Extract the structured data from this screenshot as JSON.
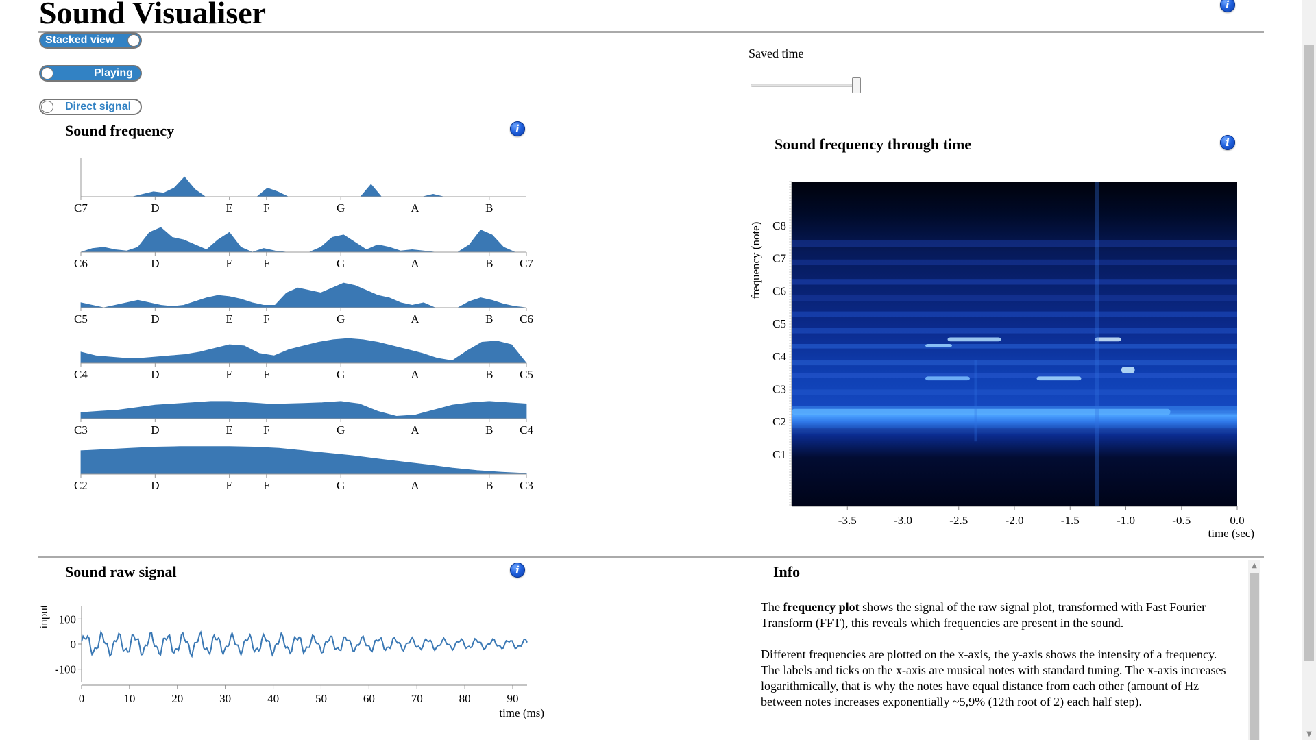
{
  "app": {
    "title": "Sound Visualiser"
  },
  "toggles": {
    "stacked": {
      "label": "Stacked view",
      "state": "on"
    },
    "playing": {
      "label": "Playing",
      "state": "on"
    },
    "direct": {
      "label": "Direct signal",
      "state": "off"
    }
  },
  "saved_time": {
    "label": "Saved time",
    "value": 1.0
  },
  "sections": {
    "frequency": "Sound frequency",
    "spectrogram": "Sound frequency through time",
    "raw": "Sound raw signal",
    "info": "Info"
  },
  "info_text": {
    "p1_a": "The ",
    "p1_b": "frequency plot",
    "p1_c": " shows the signal of the raw signal plot, transformed with Fast Fourier Transform (FFT), this reveals which frequencies are present in the sound.",
    "p2": "Different frequencies are plotted on the x-axis, the y-axis shows the intensity of a frequency.",
    "p3": "The labels and ticks on the x-axis are musical notes with standard tuning. The x-axis increases logarithmically, that is why the notes have equal distance from each other (amount of Hz between notes increases exponentially ~5,9% (12th root of 2) each half step)."
  },
  "chart_data": [
    {
      "type": "area",
      "title": "Sound frequency",
      "stacked_octaves": true,
      "notes": [
        "C",
        "D",
        "E",
        "F",
        "G",
        "A",
        "B"
      ],
      "octaves": [
        {
          "start": "C7",
          "end": "",
          "labels": [
            "C7",
            "D",
            "E",
            "F",
            "G",
            "A",
            "B"
          ],
          "values": [
            0,
            0,
            0,
            0,
            0,
            0,
            0.1,
            0.2,
            0.15,
            0.35,
            0.8,
            0.3,
            0,
            0,
            0,
            0,
            0,
            0,
            0.35,
            0.2,
            0,
            0,
            0,
            0,
            0,
            0,
            0,
            0,
            0.5,
            0,
            0,
            0,
            0,
            0,
            0.1,
            0,
            0,
            0,
            0,
            0,
            0,
            0,
            0,
            0
          ]
        },
        {
          "start": "C6",
          "end": "C7",
          "labels": [
            "C6",
            "D",
            "E",
            "F",
            "G",
            "A",
            "B",
            "C7"
          ],
          "values": [
            0,
            0.15,
            0.2,
            0.1,
            0.05,
            0.2,
            0.8,
            1.0,
            0.6,
            0.5,
            0.3,
            0.1,
            0.5,
            0.8,
            0.2,
            0,
            0.15,
            0.05,
            0,
            0,
            0,
            0.2,
            0.6,
            0.7,
            0.4,
            0.1,
            0.3,
            0.2,
            0.05,
            0.1,
            0.05,
            0,
            0,
            0,
            0.3,
            0.9,
            0.7,
            0.2,
            0,
            0
          ]
        },
        {
          "start": "C5",
          "end": "C6",
          "labels": [
            "C5",
            "D",
            "E",
            "F",
            "G",
            "A",
            "B",
            "C6"
          ],
          "values": [
            0.2,
            0.1,
            0,
            0.1,
            0.2,
            0.3,
            0.2,
            0.1,
            0.05,
            0.1,
            0.25,
            0.4,
            0.5,
            0.45,
            0.35,
            0.2,
            0.1,
            0.1,
            0.6,
            0.8,
            0.7,
            0.6,
            0.8,
            1.0,
            0.9,
            0.7,
            0.5,
            0.4,
            0.2,
            0.1,
            0.2,
            0,
            0,
            0,
            0.25,
            0.4,
            0.3,
            0.15,
            0.05,
            0
          ]
        },
        {
          "start": "C4",
          "end": "C5",
          "labels": [
            "C4",
            "D",
            "E",
            "F",
            "G",
            "A",
            "B",
            "C5"
          ],
          "values": [
            0.45,
            0.3,
            0.25,
            0.2,
            0.2,
            0.25,
            0.3,
            0.35,
            0.45,
            0.6,
            0.75,
            0.7,
            0.4,
            0.3,
            0.55,
            0.7,
            0.85,
            0.95,
            1.0,
            0.95,
            0.85,
            0.7,
            0.55,
            0.4,
            0.2,
            0.1,
            0.5,
            0.85,
            0.9,
            0.75,
            0
          ]
        },
        {
          "start": "C3",
          "end": "C4",
          "labels": [
            "C3",
            "D",
            "E",
            "F",
            "G",
            "A",
            "B",
            "C4"
          ],
          "values": [
            0.25,
            0.3,
            0.35,
            0.45,
            0.55,
            0.6,
            0.65,
            0.7,
            0.7,
            0.65,
            0.6,
            0.6,
            0.62,
            0.65,
            0.7,
            0.6,
            0.3,
            0.1,
            0.15,
            0.35,
            0.55,
            0.65,
            0.7,
            0.65,
            0.6
          ]
        },
        {
          "start": "C2",
          "end": "C3",
          "labels": [
            "C2",
            "D",
            "E",
            "F",
            "G",
            "A",
            "B",
            "C3"
          ],
          "values": [
            0.95,
            1.0,
            1.05,
            1.1,
            1.12,
            1.12,
            1.12,
            1.1,
            1.05,
            0.95,
            0.85,
            0.75,
            0.62,
            0.5,
            0.38,
            0.25,
            0.15,
            0.08,
            0.03
          ]
        }
      ]
    },
    {
      "type": "heatmap",
      "title": "Sound frequency through time",
      "xlabel": "time (sec)",
      "ylabel": "frequency (note)",
      "x_ticks": [
        "-3.5",
        "-3.0",
        "-2.5",
        "-2.0",
        "-1.5",
        "-1.0",
        "-0.5",
        "0.0"
      ],
      "y_ticks": [
        "C8",
        "C7",
        "C6",
        "C5",
        "C4",
        "C3",
        "C2",
        "C1"
      ],
      "xlim": [
        -4.0,
        0.0
      ],
      "colormap": [
        "#000010",
        "#0a1e6e",
        "#1e50d0",
        "#3c8cff",
        "#b4e0ff"
      ]
    },
    {
      "type": "line",
      "title": "Sound raw signal",
      "xlabel": "time (ms)",
      "ylabel": "input",
      "xlim": [
        0,
        93
      ],
      "ylim": [
        -150,
        150
      ],
      "x_ticks": [
        "0",
        "10",
        "20",
        "30",
        "40",
        "50",
        "60",
        "70",
        "80",
        "90"
      ],
      "y_ticks": [
        "100",
        "0",
        "-100"
      ],
      "sample_count": 300,
      "amplitude_envelope": [
        45,
        45,
        45,
        40,
        40,
        35,
        30,
        25,
        22,
        20
      ],
      "color": "#3a78b4"
    }
  ]
}
